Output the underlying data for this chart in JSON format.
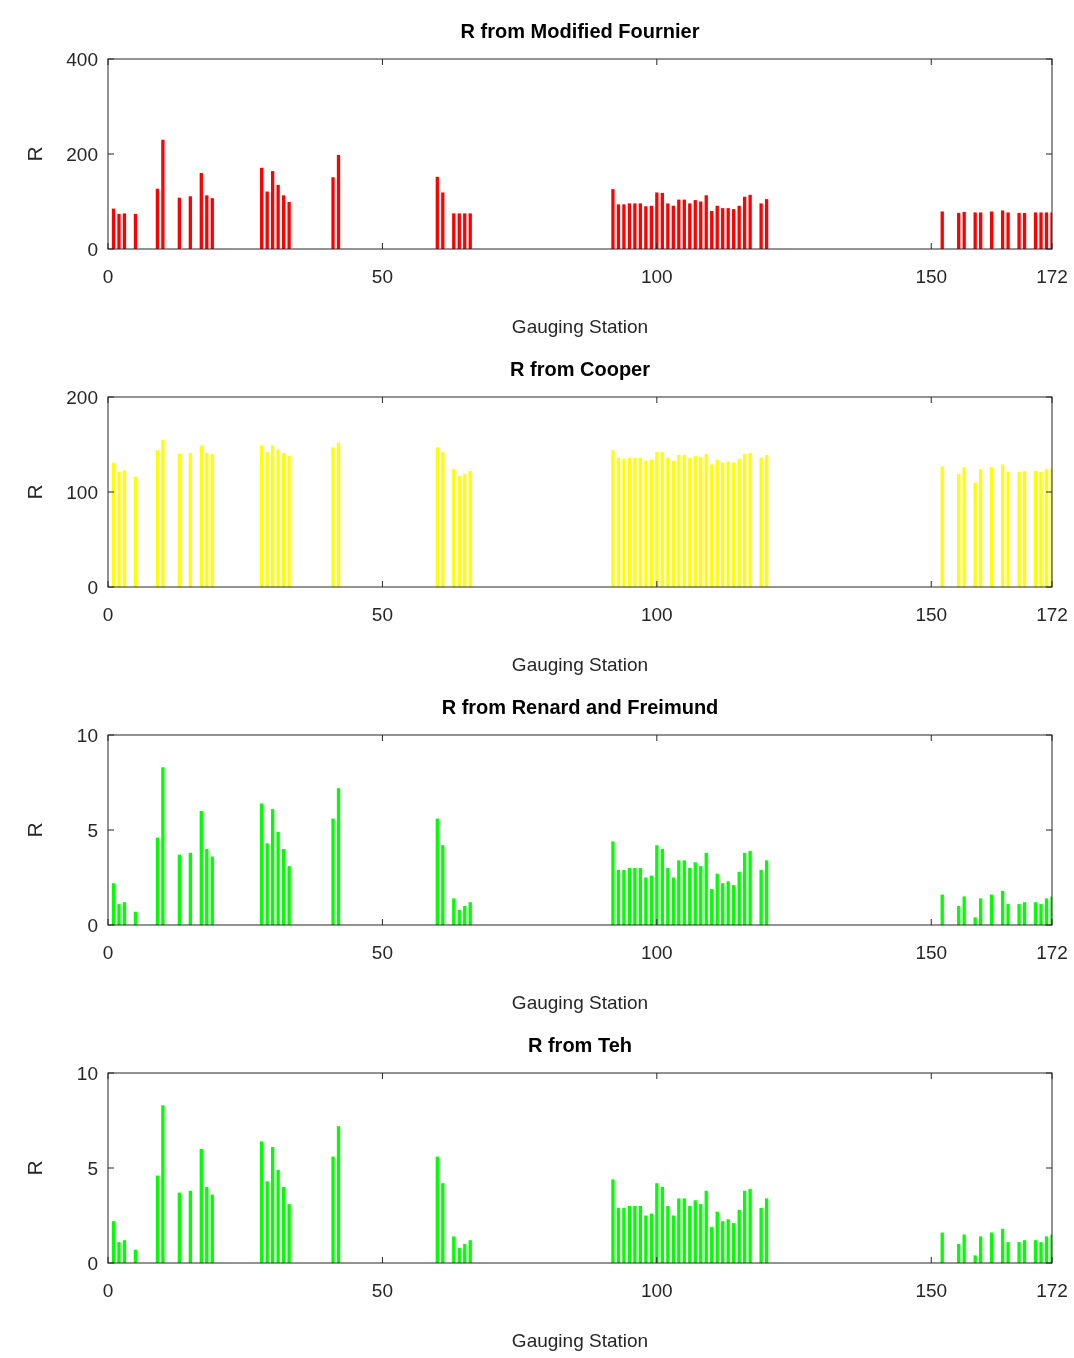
{
  "chart_data": [
    {
      "type": "bar",
      "title": "R from Modified Fournier",
      "xlabel": "Gauging Station",
      "ylabel": "R",
      "color": "#ff0000",
      "xlim": [
        0,
        172
      ],
      "xticks": [
        0,
        50,
        100,
        150,
        172
      ],
      "ylim": [
        0,
        400
      ],
      "yticks": [
        0,
        200,
        400
      ],
      "x": [
        1,
        2,
        3,
        5,
        9,
        10,
        13,
        15,
        17,
        18,
        19,
        28,
        29,
        30,
        31,
        32,
        33,
        41,
        42,
        60,
        61,
        63,
        64,
        65,
        66,
        92,
        93,
        94,
        95,
        96,
        97,
        98,
        99,
        100,
        101,
        102,
        103,
        104,
        105,
        106,
        107,
        108,
        109,
        110,
        111,
        112,
        113,
        114,
        115,
        116,
        117,
        119,
        120,
        152,
        155,
        156,
        158,
        159,
        161,
        163,
        164,
        166,
        167,
        169,
        170,
        171,
        172
      ],
      "values": [
        85,
        74,
        75,
        74,
        127,
        230,
        108,
        111,
        160,
        113,
        107,
        171,
        121,
        164,
        135,
        113,
        99,
        151,
        198,
        152,
        119,
        75,
        75,
        75,
        75,
        126,
        94,
        94,
        96,
        96,
        96,
        90,
        91,
        119,
        118,
        96,
        91,
        104,
        104,
        96,
        103,
        100,
        113,
        80,
        91,
        86,
        86,
        84,
        91,
        110,
        114,
        96,
        105,
        79,
        76,
        78,
        77,
        77,
        79,
        81,
        77,
        76,
        76,
        77,
        77,
        77,
        77
      ]
    },
    {
      "type": "bar",
      "title": "R from Cooper",
      "xlabel": "Gauging Station",
      "ylabel": "R",
      "color": "#ffff00",
      "xlim": [
        0,
        172
      ],
      "xticks": [
        0,
        50,
        100,
        150,
        172
      ],
      "ylim": [
        0,
        200
      ],
      "yticks": [
        0,
        100,
        200
      ],
      "x": [
        1,
        2,
        3,
        5,
        9,
        10,
        13,
        15,
        17,
        18,
        19,
        28,
        29,
        30,
        31,
        32,
        33,
        41,
        42,
        60,
        61,
        63,
        64,
        65,
        66,
        92,
        93,
        94,
        95,
        96,
        97,
        98,
        99,
        100,
        101,
        102,
        103,
        104,
        105,
        106,
        107,
        108,
        109,
        110,
        111,
        112,
        113,
        114,
        115,
        116,
        117,
        119,
        120,
        152,
        155,
        156,
        158,
        159,
        161,
        163,
        164,
        166,
        167,
        169,
        170,
        171,
        172
      ],
      "values": [
        131,
        121,
        123,
        116,
        144,
        155,
        140,
        141,
        149,
        141,
        140,
        149,
        142,
        149,
        145,
        141,
        138,
        147,
        152,
        147,
        142,
        124,
        117,
        119,
        122,
        144,
        136,
        135,
        136,
        136,
        136,
        133,
        134,
        142,
        142,
        136,
        133,
        139,
        139,
        136,
        138,
        137,
        140,
        129,
        134,
        131,
        132,
        131,
        135,
        140,
        141,
        136,
        139,
        127,
        119,
        126,
        110,
        124,
        126,
        129,
        121,
        121,
        122,
        122,
        121,
        124,
        125
      ]
    },
    {
      "type": "bar",
      "title": "R from Renard and Freimund",
      "xlabel": "Gauging Station",
      "ylabel": "R",
      "color": "#00ff00",
      "xlim": [
        0,
        172
      ],
      "xticks": [
        0,
        50,
        100,
        150,
        172
      ],
      "ylim": [
        0,
        10
      ],
      "yticks": [
        0,
        5,
        10
      ],
      "x": [
        1,
        2,
        3,
        5,
        9,
        10,
        13,
        15,
        17,
        18,
        19,
        28,
        29,
        30,
        31,
        32,
        33,
        41,
        42,
        60,
        61,
        63,
        64,
        65,
        66,
        92,
        93,
        94,
        95,
        96,
        97,
        98,
        99,
        100,
        101,
        102,
        103,
        104,
        105,
        106,
        107,
        108,
        109,
        110,
        111,
        112,
        113,
        114,
        115,
        116,
        117,
        119,
        120,
        152,
        155,
        156,
        158,
        159,
        161,
        163,
        164,
        166,
        167,
        169,
        170,
        171,
        172
      ],
      "values": [
        2.2,
        1.1,
        1.2,
        0.7,
        4.6,
        8.3,
        3.7,
        3.8,
        6.0,
        4.0,
        3.6,
        6.4,
        4.3,
        6.1,
        4.9,
        4.0,
        3.1,
        5.6,
        7.2,
        5.6,
        4.2,
        1.4,
        0.8,
        1.0,
        1.2,
        4.4,
        2.9,
        2.9,
        3.0,
        3.0,
        3.0,
        2.5,
        2.6,
        4.2,
        4.0,
        3.0,
        2.5,
        3.4,
        3.4,
        3.0,
        3.3,
        3.1,
        3.8,
        1.9,
        2.7,
        2.2,
        2.3,
        2.1,
        2.8,
        3.8,
        3.9,
        2.9,
        3.4,
        1.6,
        1.0,
        1.5,
        0.4,
        1.4,
        1.6,
        1.8,
        1.1,
        1.1,
        1.2,
        1.2,
        1.1,
        1.4,
        1.5
      ]
    },
    {
      "type": "bar",
      "title": "R from Teh",
      "xlabel": "Gauging Station",
      "ylabel": "R",
      "color": "#00ff00",
      "xlim": [
        0,
        172
      ],
      "xticks": [
        0,
        50,
        100,
        150,
        172
      ],
      "ylim": [
        0,
        10
      ],
      "yticks": [
        0,
        5,
        10
      ],
      "x": [
        1,
        2,
        3,
        5,
        9,
        10,
        13,
        15,
        17,
        18,
        19,
        28,
        29,
        30,
        31,
        32,
        33,
        41,
        42,
        60,
        61,
        63,
        64,
        65,
        66,
        92,
        93,
        94,
        95,
        96,
        97,
        98,
        99,
        100,
        101,
        102,
        103,
        104,
        105,
        106,
        107,
        108,
        109,
        110,
        111,
        112,
        113,
        114,
        115,
        116,
        117,
        119,
        120,
        152,
        155,
        156,
        158,
        159,
        161,
        163,
        164,
        166,
        167,
        169,
        170,
        171,
        172
      ],
      "values": [
        2.2,
        1.1,
        1.2,
        0.7,
        4.6,
        8.3,
        3.7,
        3.8,
        6.0,
        4.0,
        3.6,
        6.4,
        4.3,
        6.1,
        4.9,
        4.0,
        3.1,
        5.6,
        7.2,
        5.6,
        4.2,
        1.4,
        0.8,
        1.0,
        1.2,
        4.4,
        2.9,
        2.9,
        3.0,
        3.0,
        3.0,
        2.5,
        2.6,
        4.2,
        4.0,
        3.0,
        2.5,
        3.4,
        3.4,
        3.0,
        3.3,
        3.1,
        3.8,
        1.9,
        2.7,
        2.2,
        2.3,
        2.1,
        2.8,
        3.8,
        3.9,
        2.9,
        3.4,
        1.6,
        1.0,
        1.5,
        0.4,
        1.4,
        1.6,
        1.8,
        1.1,
        1.1,
        1.2,
        1.2,
        1.1,
        1.4,
        1.5
      ]
    }
  ]
}
